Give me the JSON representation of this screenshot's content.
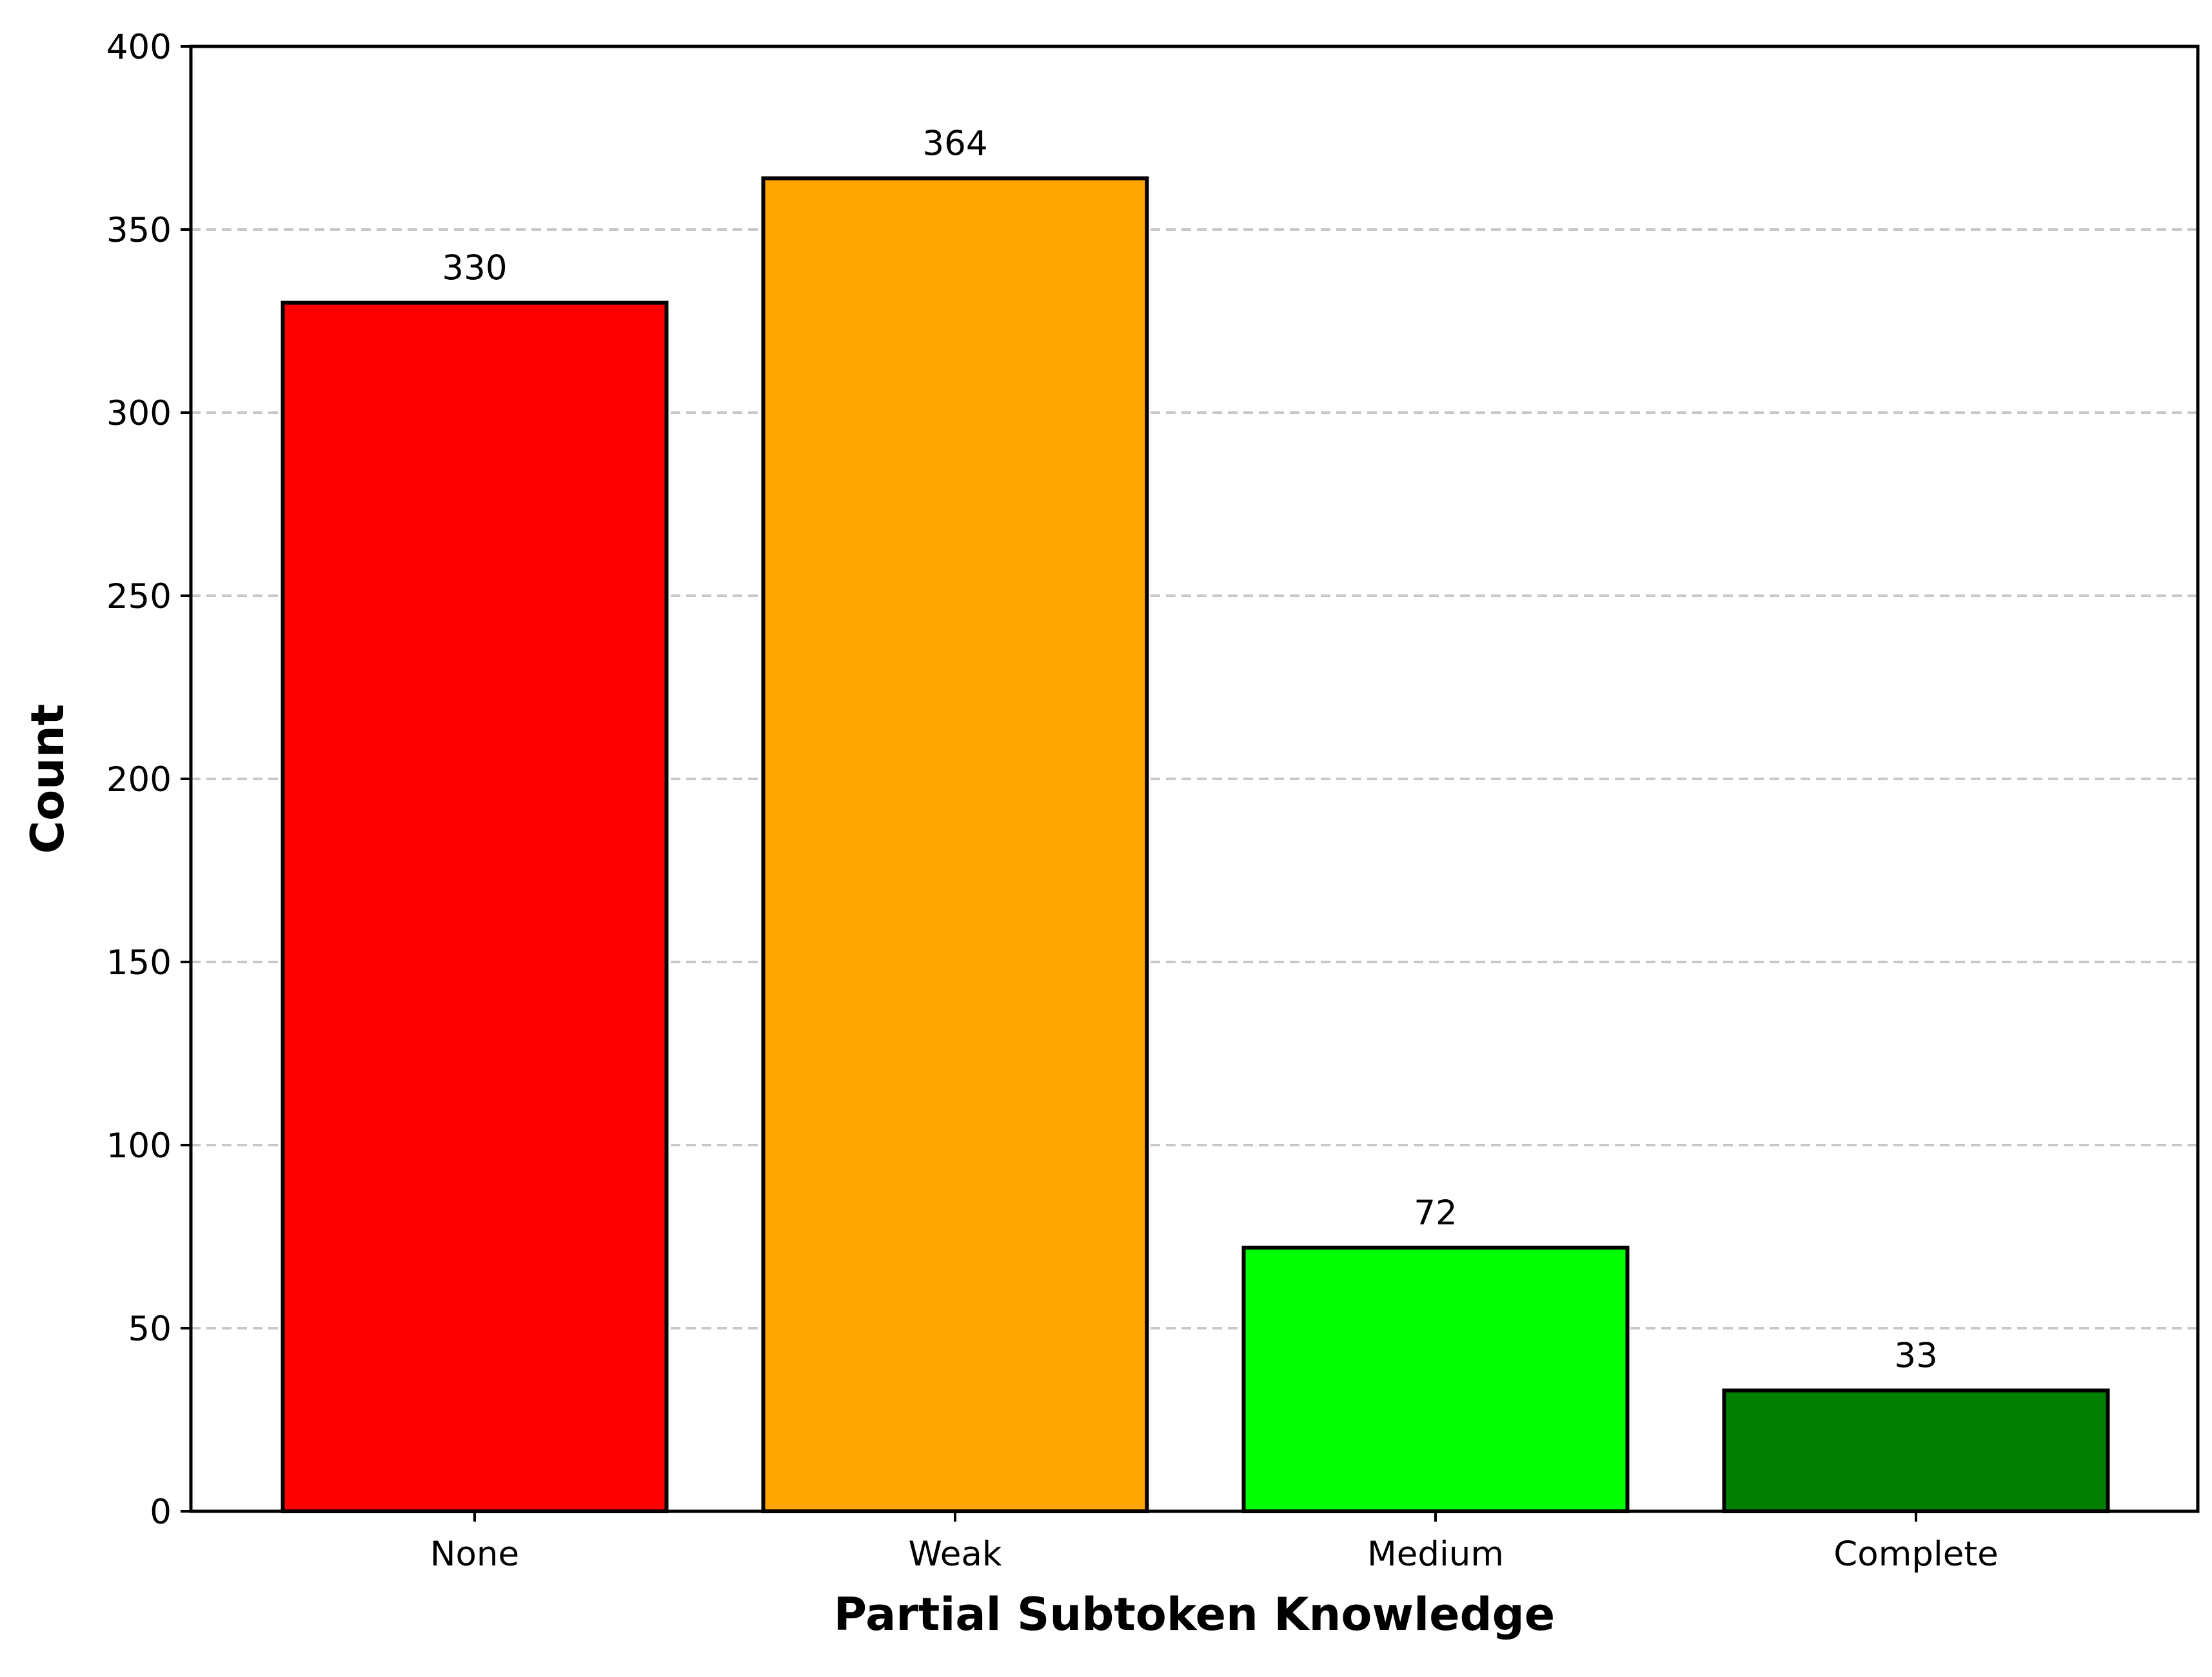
{
  "chart_data": {
    "type": "bar",
    "title": "",
    "xlabel": "Partial Subtoken Knowledge",
    "ylabel": "Count",
    "categories": [
      "None",
      "Weak",
      "Medium",
      "Complete"
    ],
    "values": [
      330,
      364,
      72,
      33
    ],
    "data_labels": [
      "330",
      "364",
      "72",
      "33"
    ],
    "colors": [
      "#ff0000",
      "#ffa500",
      "#00ff00",
      "#008000"
    ],
    "edge_color": "#000000",
    "ylim": [
      0,
      400
    ],
    "yticks": [
      0,
      50,
      100,
      150,
      200,
      250,
      300,
      350,
      400
    ],
    "grid": {
      "axis": "y",
      "style": "dashed",
      "color": "#c8c8c8"
    },
    "legend": "none"
  }
}
